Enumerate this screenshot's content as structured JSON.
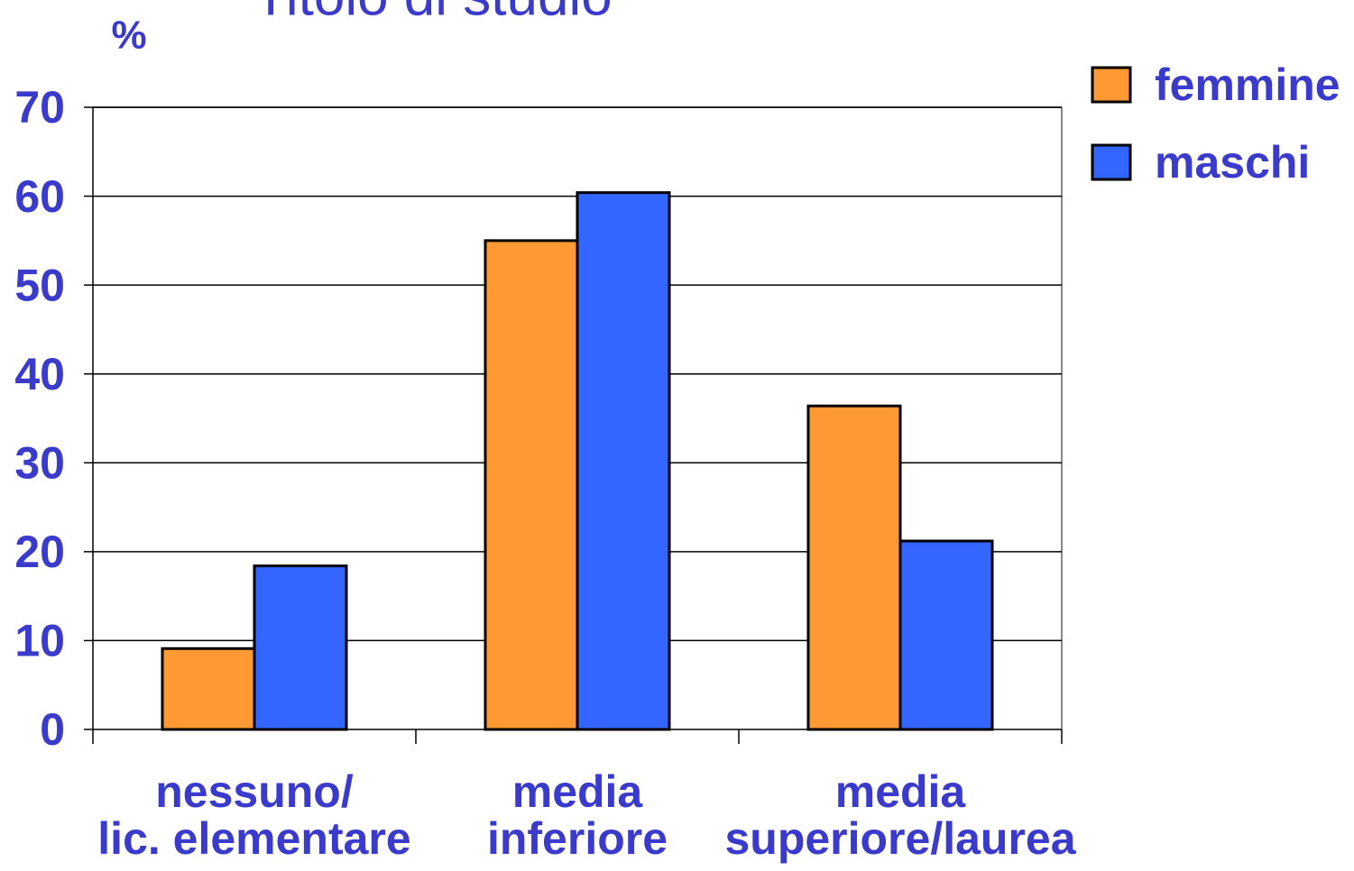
{
  "chart_data": {
    "type": "bar",
    "title": "Titolo di studio",
    "y_label": "%",
    "categories": [
      [
        "nessuno/",
        "lic. elementare"
      ],
      [
        "media",
        "inferiore"
      ],
      [
        "media",
        "superiore/laurea"
      ]
    ],
    "series": [
      {
        "name": "femmine",
        "color": "#ff9933",
        "values": [
          9.1,
          55,
          36.4
        ]
      },
      {
        "name": "maschi",
        "color": "#3366ff",
        "values": [
          18.4,
          60.4,
          21.2
        ]
      }
    ],
    "ylim": [
      0,
      70
    ],
    "yticks": [
      0,
      10,
      20,
      30,
      40,
      50,
      60,
      70
    ],
    "grid": true,
    "legend": "right"
  }
}
